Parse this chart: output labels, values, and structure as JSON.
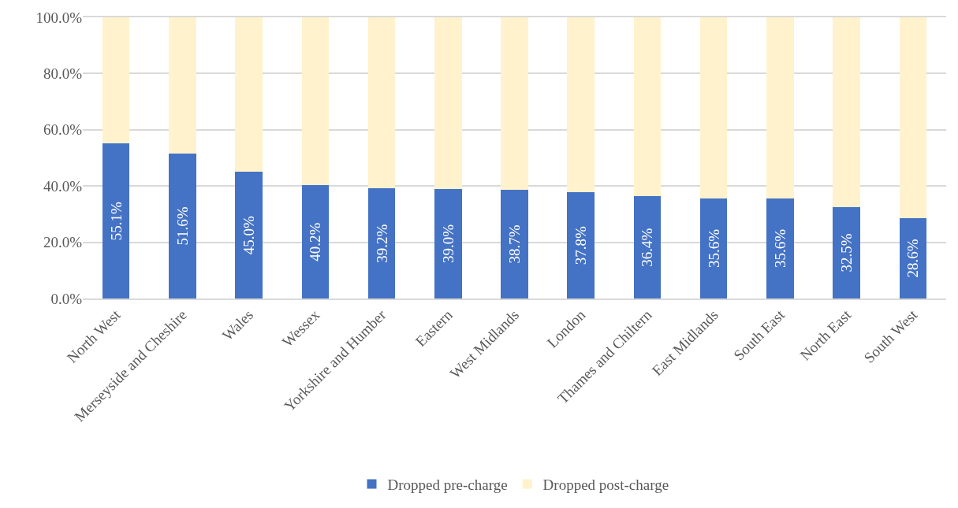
{
  "chart_data": {
    "type": "bar",
    "stacked": true,
    "categories": [
      "North West",
      "Merseyside and Cheshire",
      "Wales",
      "Wessex",
      "Yorkshire and Humber",
      "Eastern",
      "West Midlands",
      "London",
      "Thames and Chiltern",
      "East Midlands",
      "South East",
      "North East",
      "South West"
    ],
    "series": [
      {
        "name": "Dropped pre-charge",
        "color": "#4472c4",
        "values": [
          55.1,
          51.6,
          45.0,
          40.2,
          39.2,
          39.0,
          38.7,
          37.8,
          36.4,
          35.6,
          35.6,
          32.5,
          28.6
        ],
        "value_labels": [
          "55.1%",
          "51.6%",
          "45.0%",
          "40.2%",
          "39.2%",
          "39.0%",
          "38.7%",
          "37.8%",
          "36.4%",
          "35.6%",
          "35.6%",
          "32.5%",
          "28.6%"
        ]
      },
      {
        "name": "Dropped post-charge",
        "color": "#fff2cc",
        "values": [
          44.9,
          48.4,
          55.0,
          59.8,
          60.8,
          61.0,
          61.3,
          62.2,
          63.6,
          64.4,
          64.4,
          67.5,
          71.4
        ]
      }
    ],
    "ylim": [
      0,
      100
    ],
    "yticks": [
      {
        "value": 0,
        "label": "0.0%"
      },
      {
        "value": 20,
        "label": "20.0%"
      },
      {
        "value": 40,
        "label": "40.0%"
      },
      {
        "value": 60,
        "label": "60.0%"
      },
      {
        "value": 80,
        "label": "80.0%"
      },
      {
        "value": 100,
        "label": "100.0%"
      }
    ],
    "grid": "y",
    "legend": "bottom"
  }
}
